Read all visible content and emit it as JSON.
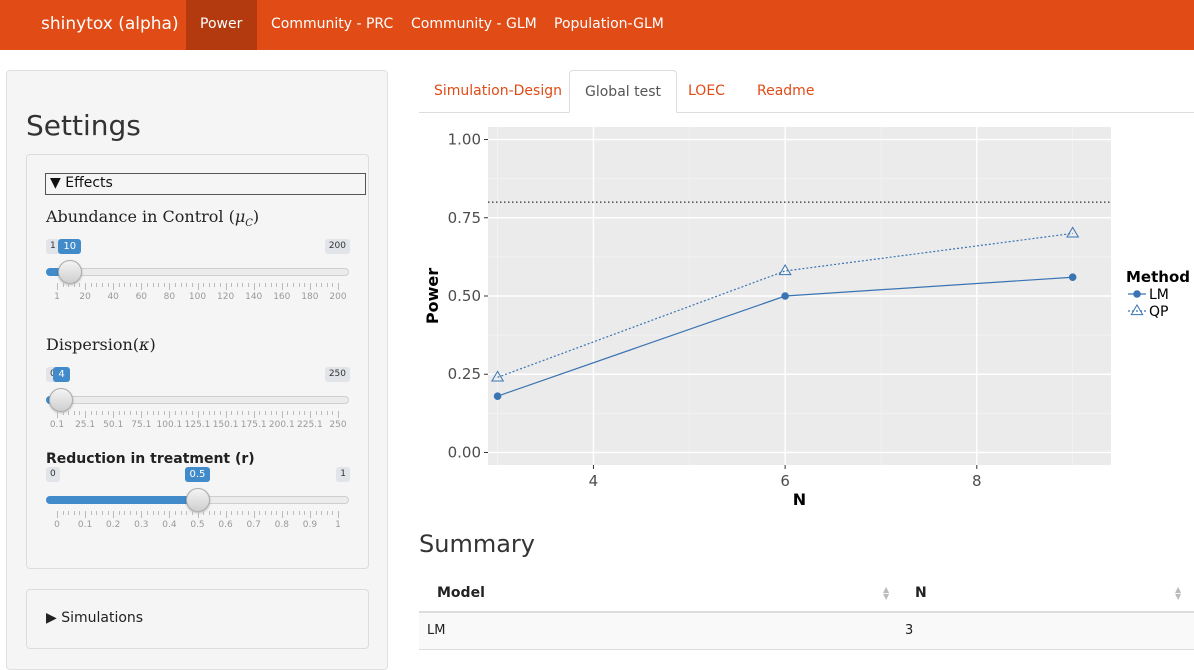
{
  "navbar": {
    "brand": "shinytox (alpha)",
    "items": [
      {
        "label": "Power",
        "active": true
      },
      {
        "label": "Community - PRC",
        "active": false
      },
      {
        "label": "Community - GLM",
        "active": false
      },
      {
        "label": "Population-GLM",
        "active": false
      }
    ]
  },
  "sidebar": {
    "title": "Settings",
    "effects_summary": "▼ Effects",
    "simulations_summary": "▶ Simulations",
    "abundance": {
      "label_text": "Abundance in Control (",
      "label_sym": "μ",
      "label_sub": "C",
      "label_close": ")",
      "value": "10",
      "min": "1",
      "max": "200",
      "ticks": [
        "1",
        "20",
        "40",
        "60",
        "80",
        "100",
        "120",
        "140",
        "160",
        "180",
        "200"
      ]
    },
    "dispersion": {
      "label_text": "Dispersion(",
      "label_sym": "κ",
      "label_close": ")",
      "value": "4",
      "min": "0.1",
      "max": "250",
      "ticks": [
        "0.1",
        "25.1",
        "50.1",
        "75.1",
        "100.1",
        "125.1",
        "150.1",
        "175.1",
        "200.1",
        "225.1",
        "250"
      ]
    },
    "reduction": {
      "label": "Reduction in treatment (r)",
      "value": "0.5",
      "min": "0",
      "max": "1",
      "ticks": [
        "0",
        "0.1",
        "0.2",
        "0.3",
        "0.4",
        "0.5",
        "0.6",
        "0.7",
        "0.8",
        "0.9",
        "1"
      ]
    }
  },
  "tabs": [
    {
      "label": "Simulation-Design",
      "active": false
    },
    {
      "label": "Global test",
      "active": true
    },
    {
      "label": "LOEC",
      "active": false
    },
    {
      "label": "Readme",
      "active": false
    }
  ],
  "chart_data": {
    "type": "line",
    "xlabel": "N",
    "ylabel": "Power",
    "xlim": [
      2.9,
      9.4
    ],
    "ylim": [
      -0.04,
      1.04
    ],
    "xticks": [
      "4",
      "6",
      "8"
    ],
    "yticks": [
      "0.00",
      "0.25",
      "0.50",
      "0.75",
      "1.00"
    ],
    "reference_line": 0.8,
    "legend_title": "Method",
    "legend_position": "right",
    "series": [
      {
        "name": "LM",
        "marker": "circle",
        "line": "solid",
        "color": "#3a74b3",
        "x": [
          3,
          6,
          9
        ],
        "y": [
          0.18,
          0.5,
          0.56
        ]
      },
      {
        "name": "QP",
        "marker": "triangle",
        "line": "dotted",
        "color": "#3a74b3",
        "x": [
          3,
          6,
          9
        ],
        "y": [
          0.24,
          0.58,
          0.7
        ]
      }
    ]
  },
  "summary": {
    "title": "Summary",
    "columns": [
      "Model",
      "N"
    ],
    "rows": [
      [
        "LM",
        "3"
      ]
    ]
  }
}
